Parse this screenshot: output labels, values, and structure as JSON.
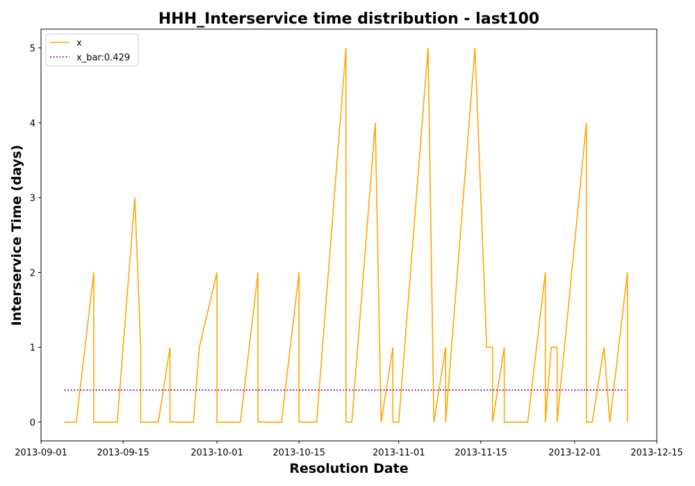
{
  "chart_data": {
    "type": "line",
    "title": "HHH_Interservice time distribution - last100",
    "xlabel": "Resolution Date",
    "ylabel": "Interservice Time (days)",
    "x_is_date": true,
    "xlim": [
      "2013-09-01",
      "2013-12-15"
    ],
    "ylim": [
      -0.25,
      5.25
    ],
    "x_ticks": [
      "2013-09-01",
      "2013-09-15",
      "2013-10-01",
      "2013-10-15",
      "2013-11-01",
      "2013-11-15",
      "2013-12-01",
      "2013-12-15"
    ],
    "y_ticks": [
      0,
      1,
      2,
      3,
      4,
      5
    ],
    "grid": false,
    "legend_position": "top-left",
    "series": [
      {
        "name": "x",
        "color": "#ffa500",
        "style": "solid",
        "points": [
          [
            "2013-09-05",
            0
          ],
          [
            "2013-09-07",
            0
          ],
          [
            "2013-09-10",
            2
          ],
          [
            "2013-09-10",
            0
          ],
          [
            "2013-09-14",
            0
          ],
          [
            "2013-09-17",
            3
          ],
          [
            "2013-09-18",
            1
          ],
          [
            "2013-09-18",
            0
          ],
          [
            "2013-09-21",
            0
          ],
          [
            "2013-09-23",
            1
          ],
          [
            "2013-09-23",
            0
          ],
          [
            "2013-09-27",
            0
          ],
          [
            "2013-09-28",
            1
          ],
          [
            "2013-10-01",
            2
          ],
          [
            "2013-10-01",
            0
          ],
          [
            "2013-10-05",
            0
          ],
          [
            "2013-10-08",
            2
          ],
          [
            "2013-10-08",
            0
          ],
          [
            "2013-10-12",
            0
          ],
          [
            "2013-10-15",
            2
          ],
          [
            "2013-10-15",
            0
          ],
          [
            "2013-10-18",
            0
          ],
          [
            "2013-10-23",
            5
          ],
          [
            "2013-10-23",
            0
          ],
          [
            "2013-10-24",
            0
          ],
          [
            "2013-10-28",
            4
          ],
          [
            "2013-10-29",
            0
          ],
          [
            "2013-10-29",
            0
          ],
          [
            "2013-10-31",
            1
          ],
          [
            "2013-10-31",
            0
          ],
          [
            "2013-11-01",
            0
          ],
          [
            "2013-11-06",
            5
          ],
          [
            "2013-11-07",
            0
          ],
          [
            "2013-11-09",
            1
          ],
          [
            "2013-11-09",
            0
          ],
          [
            "2013-11-14",
            5
          ],
          [
            "2013-11-16",
            1
          ],
          [
            "2013-11-17",
            1
          ],
          [
            "2013-11-17",
            0
          ],
          [
            "2013-11-18",
            0.5
          ],
          [
            "2013-11-19",
            1
          ],
          [
            "2013-11-19",
            0
          ],
          [
            "2013-11-23",
            0
          ],
          [
            "2013-11-26",
            2
          ],
          [
            "2013-11-26",
            0
          ],
          [
            "2013-11-27",
            1
          ],
          [
            "2013-11-28",
            1
          ],
          [
            "2013-11-28",
            0
          ],
          [
            "2013-12-03",
            4
          ],
          [
            "2013-12-03",
            0
          ],
          [
            "2013-12-04",
            0
          ],
          [
            "2013-12-06",
            1
          ],
          [
            "2013-12-07",
            0
          ],
          [
            "2013-12-10",
            2
          ],
          [
            "2013-12-10",
            0
          ]
        ]
      },
      {
        "name": "x_bar:0.429",
        "color": "#800080",
        "style": "dotted",
        "points": [
          [
            "2013-09-05",
            0.429
          ],
          [
            "2013-12-10",
            0.429
          ]
        ]
      }
    ]
  }
}
